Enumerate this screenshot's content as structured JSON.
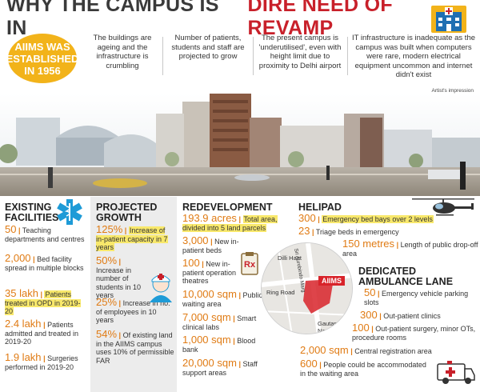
{
  "header": {
    "title_part1": "WHY THE CAMPUS IS IN",
    "title_part2": "DIRE NEED OF REVAMP"
  },
  "colors": {
    "accent_red": "#c8202a",
    "accent_orange": "#e07b14",
    "badge_yellow": "#f2b31a",
    "highlight": "#f8e86b",
    "panel_grey": "#ececec"
  },
  "icons": [
    "hospital-building-icon",
    "medical-star-icon",
    "nurse-icon",
    "clipboard-icon",
    "helicopter-icon",
    "ambulance-icon"
  ],
  "established": {
    "text": "AIIMS WAS ESTABLISHED IN 1956"
  },
  "facts": [
    "The buildings are ageing and the infrastructure is crumbling",
    "Number of patients, students and staff are projected to grow",
    "The present campus is 'underutilised', even with height limit due to proximity to Delhi airport",
    "IT infrastructure is inadequate as the campus was built when computers were rare, modern electrical equipment uncommon and internet didn't exist"
  ],
  "artist_note": "Artist's impression",
  "existing": {
    "heading": "EXISTING FACILITIES",
    "items": [
      {
        "num": "50",
        "text": "Teaching departments and centres"
      },
      {
        "num": "2,000",
        "text": "Bed facility spread in multiple blocks"
      },
      {
        "num": "35 lakh",
        "text": "Patients treated in OPD in 2019-20"
      },
      {
        "num": "2.4 lakh",
        "text": "Patients admitted and treated in 2019-20"
      },
      {
        "num": "1.9 lakh",
        "text": "Surgeries performed in 2019-20"
      }
    ]
  },
  "projected": {
    "heading": "PROJECTED GROWTH",
    "items": [
      {
        "num": "125%",
        "text": "Increase of in-patient capacity in 7 years"
      },
      {
        "num": "50%",
        "text": "Increase in number of students in 10 years"
      },
      {
        "num": "25%",
        "text": "Increase in no. of employees in 10 years"
      },
      {
        "num": "54%",
        "text": "Of existing land in the AIIMS campus uses 10% of permissible FAR"
      }
    ]
  },
  "redevelopment": {
    "heading": "REDEVELOPMENT",
    "items": [
      {
        "num": "193.9 acres",
        "text": "Total area, divided into 5 land parcels"
      },
      {
        "num": "3,000",
        "text": "New in-patient beds"
      },
      {
        "num": "100",
        "text": "New in-patient operation theatres"
      },
      {
        "num": "10,000 sqm",
        "text": "Public waiting area"
      },
      {
        "num": "7,000 sqm",
        "text": "Smart clinical labs"
      },
      {
        "num": "1,000 sqm",
        "text": "Blood bank"
      },
      {
        "num": "20,000 sqm",
        "text": "Staff support areas"
      }
    ]
  },
  "helipad": {
    "heading": "HELIPAD",
    "items": [
      {
        "num": "300",
        "text": "Emergency bed bays over 2 levels"
      },
      {
        "num": "23",
        "text": "Triage beds in emergency"
      },
      {
        "num": "150 metres",
        "text": "Length of public drop-off area"
      }
    ]
  },
  "ambulance": {
    "heading": "DEDICATED AMBULANCE LANE",
    "items": [
      {
        "num": "50",
        "text": "Emergency vehicle parking slots"
      },
      {
        "num": "300",
        "text": "Out-patient clinics"
      },
      {
        "num": "100",
        "text": "Out-patient surgery, minor OTs, procedure rooms"
      },
      {
        "num": "2,000 sqm",
        "text": "Central registration area"
      },
      {
        "num": "600",
        "text": "People could be accommodated in the waiting area"
      }
    ]
  },
  "map": {
    "aiims_label": "AIIMS",
    "place_labels": [
      "Dilli Haat",
      "Ring Road",
      "Sri Aurobindo Marg",
      "Gautam Nagar"
    ]
  }
}
